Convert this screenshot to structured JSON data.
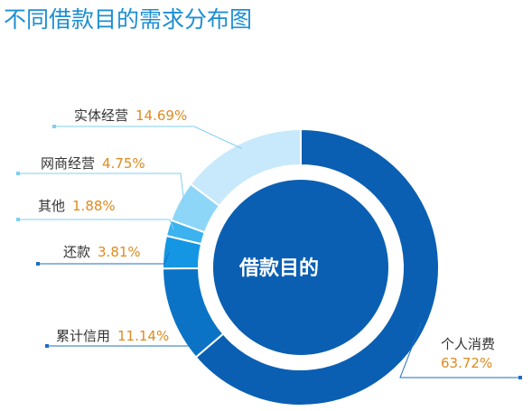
{
  "title": "不同借款目的需求分布图",
  "chart_data": {
    "type": "pie",
    "variant": "donut",
    "center_label": "借款目的",
    "categories": [
      "个人消费",
      "累计信用",
      "还款",
      "其他",
      "网商经营",
      "实体经营"
    ],
    "values": [
      63.72,
      11.14,
      3.81,
      1.88,
      4.75,
      14.69
    ],
    "value_labels": [
      "63.72%",
      "11.14%",
      "3.81%",
      "1.88%",
      "4.75%",
      "14.69%"
    ],
    "colors": [
      "#0A5FB2",
      "#0A73C6",
      "#1496E2",
      "#3CB2EE",
      "#8ED6F8",
      "#C7E9FB"
    ],
    "label_color": "#333333",
    "value_color": "#E08A1E",
    "center_color": "#0A5FB2"
  }
}
